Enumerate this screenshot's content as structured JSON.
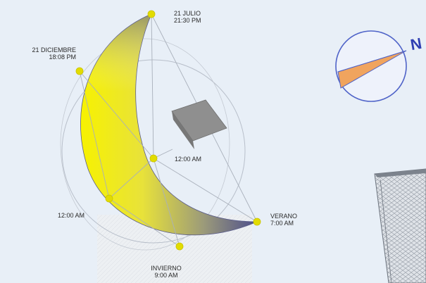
{
  "diagram": {
    "labels": {
      "july": {
        "date": "21 JULIO",
        "time": "21:30 PM"
      },
      "december": {
        "date": "21 DICIEMBRE",
        "time": "18:08 PM"
      },
      "noon_right": "12:00 AM",
      "noon_left": "12:00 AM",
      "summer": {
        "season": "VERANO",
        "time": "7:00 AM"
      },
      "winter": {
        "season": "INVIERNO",
        "time": "9:00 AM"
      }
    },
    "compass": {
      "north_letter": "N"
    },
    "colors": {
      "background": "#e8eff7",
      "sun_path_light": "#f7f200",
      "sun_path_dark": "#4d4f8c",
      "marker": "#e2dc00",
      "building_roof": "#8f8f8f",
      "compass_ring": "#4f63c8",
      "compass_wedge": "#f0a45e"
    }
  }
}
